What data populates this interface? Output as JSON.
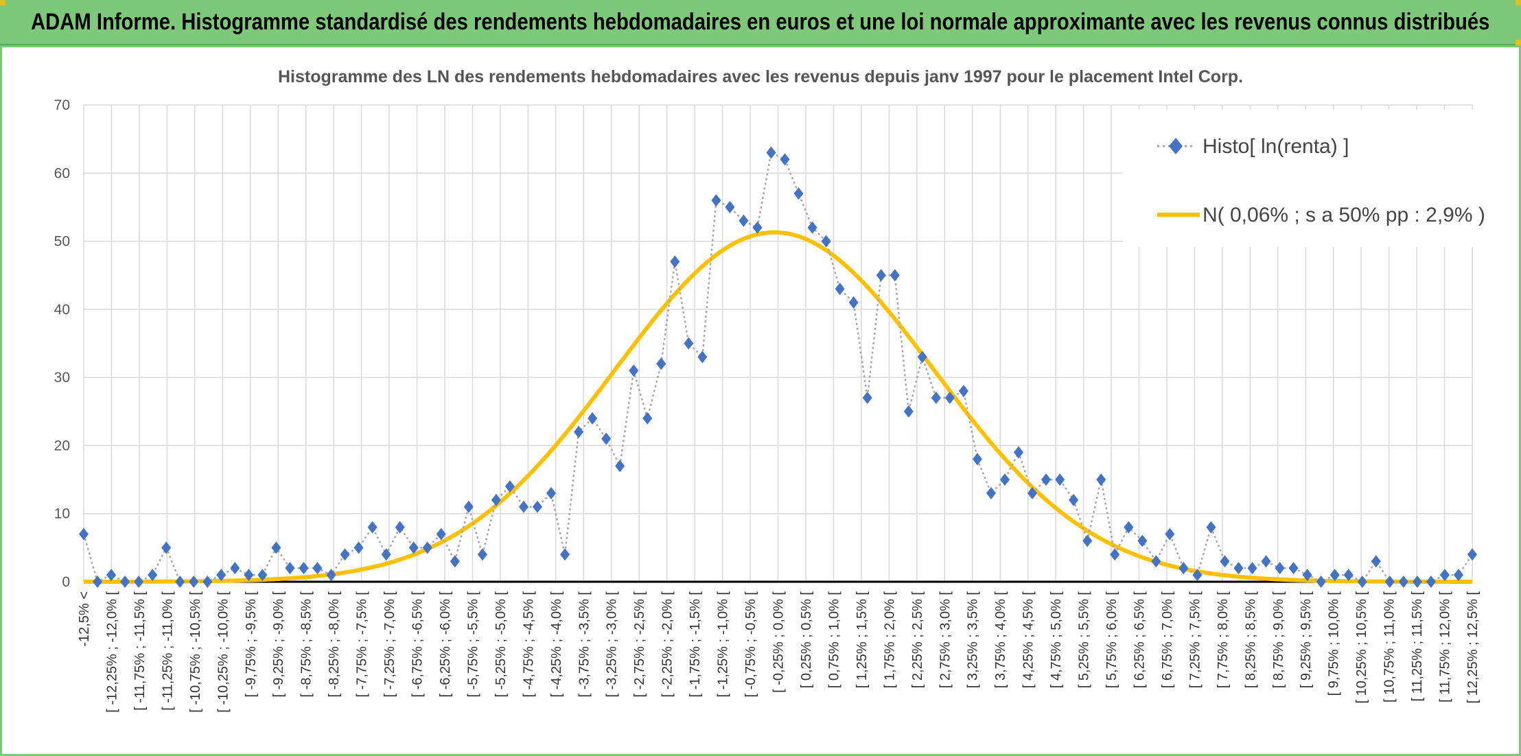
{
  "header": {
    "title": "ADAM Informe. Histogramme standardisé des rendements hebdomadaires en euros et une loi normale approximante avec les revenus connus distribués"
  },
  "colors": {
    "header_bg": "#7ec87a",
    "marker": "#4472c4",
    "connector": "#a6a6a6",
    "normal_curve": "#ffc000",
    "axis": "#000000",
    "grid": "#d9d9d9"
  },
  "chart_data": {
    "type": "line",
    "title": "Histogramme des LN des rendements hebdomadaires avec les revenus depuis janv 1997 pour le placement Intel Corp.",
    "xlabel": "",
    "ylabel": "",
    "ylim": [
      0,
      70
    ],
    "yticks": [
      0,
      10,
      20,
      30,
      40,
      50,
      60,
      70
    ],
    "grid": true,
    "legend_position": "top-right",
    "tick_labels": [
      "-12,5% <",
      "[ -12,25% ; -12,0% [",
      "[ -11,75% ; -11,5% [",
      "[ -11,25% ; -11,0% [",
      "[ -10,75% ; -10,5% [",
      "[ -10,25% ; -10,0% [",
      "[ -9,75% ; -9,5% [",
      "[ -9,25% ; -9,0% [",
      "[ -8,75% ; -8,5% [",
      "[ -8,25% ; -8,0% [",
      "[ -7,75% ; -7,5% [",
      "[ -7,25% ; -7,0% [",
      "[ -6,75% ; -6,5% [",
      "[ -6,25% ; -6,0% [",
      "[ -5,75% ; -5,5% [",
      "[ -5,25% ; -5,0% [",
      "[ -4,75% ; -4,5% [",
      "[ -4,25% ; -4,0% [",
      "[ -3,75% ; -3,5% [",
      "[ -3,25% ; -3,0% [",
      "[ -2,75% ; -2,5% [",
      "[ -2,25% ; -2,0% [",
      "[ -1,75% ; -1,5% [",
      "[ -1,25% ; -1,0% [",
      "[ -0,75% ; -0,5% [",
      "[ -0,25% ; 0,0% [",
      "[ 0,25% ; 0,5% [",
      "[ 0,75% ; 1,0% [",
      "[ 1,25% ; 1,5% [",
      "[ 1,75% ; 2,0% [",
      "[ 2,25% ; 2,5% [",
      "[ 2,75% ; 3,0% [",
      "[ 3,25% ; 3,5% [",
      "[ 3,75% ; 4,0% [",
      "[ 4,25% ; 4,5% [",
      "[ 4,75% ; 5,0% [",
      "[ 5,25% ; 5,5% [",
      "[ 5,75% ; 6,0% [",
      "[ 6,25% ; 6,5% [",
      "[ 6,75% ; 7,0% [",
      "[ 7,25% ; 7,5% [",
      "[ 7,75% ; 8,0% [",
      "[ 8,25% ; 8,5% [",
      "[ 8,75% ; 9,0% [",
      "[ 9,25% ; 9,5% [",
      "[ 9,75% ; 10,0% [",
      "[ 10,25% ; 10,5% [",
      "[ 10,75% ; 11,0% [",
      "[ 11,25% ; 11,5% [",
      "[ 11,75% ; 12,0% [",
      "[ 12,25% ; 12,5% ["
    ],
    "series": [
      {
        "name": "Histo[ ln(renta) ]",
        "style": "dotted-line-diamond-markers",
        "values": [
          7,
          0,
          1,
          0,
          0,
          1,
          5,
          0,
          0,
          0,
          1,
          2,
          1,
          1,
          5,
          2,
          2,
          2,
          1,
          4,
          5,
          8,
          4,
          8,
          5,
          5,
          7,
          3,
          11,
          4,
          12,
          14,
          11,
          11,
          13,
          4,
          22,
          24,
          21,
          17,
          31,
          24,
          32,
          47,
          35,
          33,
          56,
          55,
          53,
          52,
          63,
          62,
          57,
          52,
          50,
          43,
          41,
          27,
          45,
          45,
          25,
          33,
          27,
          27,
          28,
          18,
          13,
          15,
          19,
          13,
          15,
          15,
          12,
          6,
          15,
          4,
          8,
          6,
          3,
          7,
          2,
          1,
          8,
          3,
          2,
          2,
          3,
          2,
          2,
          1,
          0,
          1,
          1,
          0,
          3,
          0,
          0,
          0,
          0,
          1,
          1,
          4
        ]
      },
      {
        "name": "N( 0,06% ; s a 50% pp : 2,9% )",
        "style": "smooth-line",
        "mean_percent": 0.06,
        "sd_percent": 2.9,
        "peak": 51.3
      }
    ]
  }
}
